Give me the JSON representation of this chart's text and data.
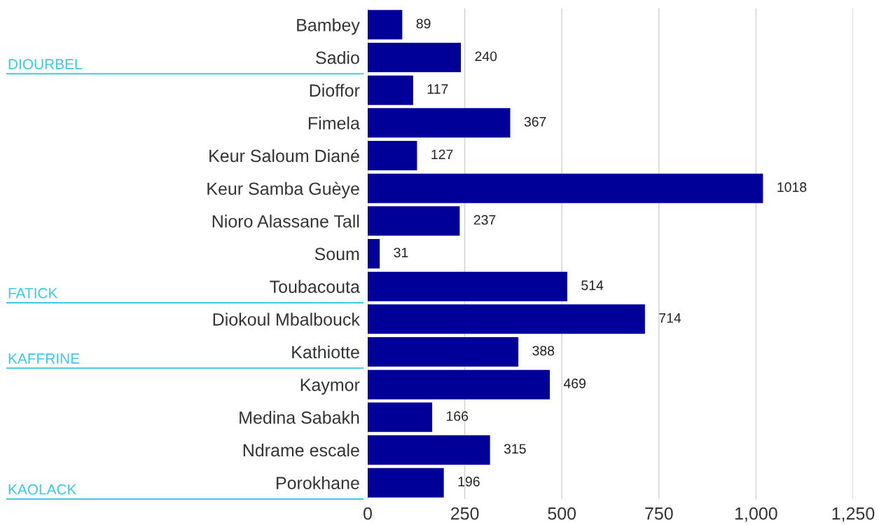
{
  "chart_data": {
    "type": "bar",
    "orientation": "horizontal",
    "categories": [
      "Bambey",
      "Sadio",
      "Dioffor",
      "Fimela",
      "Keur Saloum Diané",
      "Keur Samba Guèye",
      "Nioro Alassane Tall",
      "Soum",
      "Toubacouta",
      "Diokoul Mbalbouck",
      "Kathiotte",
      "Kaymor",
      "Medina Sabakh",
      "Ndrame escale",
      "Porokhane"
    ],
    "values": [
      89,
      240,
      117,
      367,
      127,
      1018,
      237,
      31,
      514,
      714,
      388,
      469,
      166,
      315,
      196
    ],
    "color": "#000099",
    "data_labels": true,
    "xlim": [
      0,
      1250
    ],
    "xticks": [
      0,
      250,
      500,
      750,
      {
        "value": 1000,
        "label": "1,000"
      },
      {
        "value": 1250,
        "label": "1,250"
      }
    ],
    "grid": "x",
    "annotations": [
      "DIOURBEL",
      "FATICK",
      "KAFFRINE",
      "KAOLACK"
    ]
  }
}
